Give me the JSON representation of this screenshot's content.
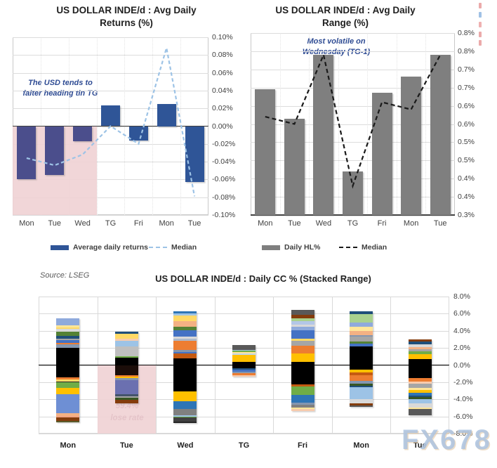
{
  "page": {
    "watermark": "FX678",
    "source_note": "Source: LSEG",
    "edge_marks": [
      {
        "y": 4,
        "color": "#E89B9B"
      },
      {
        "y": 17,
        "color": "#8FB6E0"
      },
      {
        "y": 31,
        "color": "#ECA3A3"
      },
      {
        "y": 45,
        "color": "#E89B9B"
      },
      {
        "y": 57,
        "color": "#E89B9B"
      }
    ]
  },
  "chart_data": [
    {
      "id": "returns",
      "type": "bar",
      "title": "US DOLLAR INDE/d : Avg Daily Returns (%)",
      "title_lines": [
        "US DOLLAR INDE/d : Avg Daily",
        "Returns (%)"
      ],
      "categories": [
        "Mon",
        "Tue",
        "Wed",
        "TG",
        "Fri",
        "Mon",
        "Tue"
      ],
      "series": [
        {
          "name": "Average daily returns",
          "type": "bar",
          "color": "#2F5597",
          "values": [
            -0.06,
            -0.055,
            -0.017,
            0.023,
            -0.016,
            0.025,
            -0.063
          ]
        },
        {
          "name": "Median",
          "type": "line",
          "style": "dashed",
          "color": "#9DC3E6",
          "values": [
            -0.036,
            -0.044,
            -0.032,
            0.0,
            -0.02,
            0.088,
            -0.079
          ]
        }
      ],
      "ylim": [
        -0.1,
        0.1
      ],
      "ylabel": "",
      "xlabel": "",
      "grid": true,
      "legend_position": "bottom",
      "yticks": [
        {
          "v": 0.1,
          "label": "0.10%"
        },
        {
          "v": 0.08,
          "label": "0.08%"
        },
        {
          "v": 0.06,
          "label": "0.06%"
        },
        {
          "v": 0.04,
          "label": "0.04%"
        },
        {
          "v": 0.02,
          "label": "0.02%"
        },
        {
          "v": 0.0,
          "label": "0.00%"
        },
        {
          "v": -0.02,
          "label": "-0.02%"
        },
        {
          "v": -0.04,
          "label": "-0.04%"
        },
        {
          "v": -0.06,
          "label": "-0.06%"
        },
        {
          "v": -0.08,
          "label": "-0.08%"
        },
        {
          "v": -0.1,
          "label": "-0.10%"
        }
      ],
      "annotation": {
        "lines": [
          "The USD tends to",
          "falter heading tin TG"
        ],
        "color": "#2E4B93"
      },
      "highlight": {
        "categories": [
          0,
          2
        ],
        "from": 0,
        "to": -0.1,
        "color": "rgba(240,209,212,0.9)",
        "bar_color": "#4B4E8C"
      }
    },
    {
      "id": "range",
      "type": "bar",
      "title": "US DOLLAR INDE/d : Avg Daily Range (%)",
      "title_lines": [
        "US DOLLAR INDE/d : Avg Daily",
        "Range (%)"
      ],
      "categories": [
        "Mon",
        "Tue",
        "Wed",
        "TG",
        "Fri",
        "Mon",
        "Tue"
      ],
      "series": [
        {
          "name": "Daily HL%",
          "type": "bar",
          "color": "#7F7F7F",
          "values": [
            0.645,
            0.565,
            0.74,
            0.42,
            0.635,
            0.68,
            0.74
          ]
        },
        {
          "name": "Median",
          "type": "line",
          "style": "dashed",
          "color": "#1A1A1A",
          "values": [
            0.57,
            0.55,
            0.74,
            0.38,
            0.61,
            0.59,
            0.74
          ]
        }
      ],
      "ylim": [
        0.3,
        0.8
      ],
      "ylabel": "",
      "xlabel": "",
      "grid": true,
      "legend_position": "bottom",
      "yticks": [
        {
          "v": 0.8,
          "label": "0.8%"
        },
        {
          "v": 0.75,
          "label": "0.8%"
        },
        {
          "v": 0.7,
          "label": "0.7%"
        },
        {
          "v": 0.65,
          "label": "0.7%"
        },
        {
          "v": 0.6,
          "label": "0.6%"
        },
        {
          "v": 0.55,
          "label": "0.6%"
        },
        {
          "v": 0.5,
          "label": "0.5%"
        },
        {
          "v": 0.45,
          "label": "0.5%"
        },
        {
          "v": 0.4,
          "label": "0.4%"
        },
        {
          "v": 0.35,
          "label": "0.4%"
        },
        {
          "v": 0.3,
          "label": "0.3%"
        }
      ],
      "annotation": {
        "lines": [
          "Most volatile on",
          "Wednesday (TG-1)"
        ],
        "color": "#2E4B93"
      }
    },
    {
      "id": "stacked",
      "type": "stacked-bar",
      "title": "US DOLLAR INDE/d : Daily CC % (Stacked Range)",
      "categories": [
        "Mon",
        "Tue",
        "Wed",
        "TG",
        "Fri",
        "Mon",
        "Tue"
      ],
      "ylim": [
        -8,
        8
      ],
      "grid": true,
      "yticks": [
        {
          "v": 8,
          "label": "8.0%"
        },
        {
          "v": 6,
          "label": "6.0%"
        },
        {
          "v": 4,
          "label": "4.0%"
        },
        {
          "v": 2,
          "label": "2.0%"
        },
        {
          "v": 0,
          "label": "0.0%"
        },
        {
          "v": -2,
          "label": "-2.0%"
        },
        {
          "v": -4,
          "label": "-4.0%"
        },
        {
          "v": -6,
          "label": "-6.0%"
        },
        {
          "v": -8,
          "label": "-8.0%"
        }
      ],
      "annotation": {
        "lines": [
          "59.4%",
          "lose rate"
        ],
        "color": "#7A3E62"
      },
      "highlight": {
        "category": 1,
        "from": 0,
        "to": -8,
        "color": "rgba(240,209,212,0.9)"
      },
      "bars": [
        {
          "category": "Mon",
          "top": 5.45,
          "segments": [
            [
              "#8FAADC",
              0.85
            ],
            [
              "#FFE699",
              0.18
            ],
            [
              "#FFD966",
              0.22
            ],
            [
              "#D9D9D9",
              0.32
            ],
            [
              "#548235",
              0.5
            ],
            [
              "#1F4E79",
              0.28
            ],
            [
              "#A6A6A6",
              0.2
            ],
            [
              "#4472C4",
              0.28
            ],
            [
              "#ED7D31",
              0.22
            ],
            [
              "#8496B0",
              0.4
            ],
            [
              "#000000",
              3.4
            ],
            [
              "#ED7D31",
              0.28
            ],
            [
              "#FFD966",
              0.22
            ],
            [
              "#262626",
              0.15
            ],
            [
              "#70AD47",
              0.6
            ],
            [
              "#FFC000",
              0.75
            ],
            [
              "#6E8FD4",
              2.25
            ],
            [
              "#F4B183",
              0.28
            ],
            [
              "#F2A584",
              0.22
            ],
            [
              "#843C0C",
              0.38
            ],
            [
              "#5A5A2A",
              0.15
            ]
          ]
        },
        {
          "category": "Tue",
          "top": 3.9,
          "segments": [
            [
              "#1F4E79",
              0.22
            ],
            [
              "#FFD966",
              0.6
            ],
            [
              "#F8CBAD",
              0.26
            ],
            [
              "#9DC3E6",
              0.64
            ],
            [
              "#BFBFBF",
              1.13
            ],
            [
              "#70AD47",
              0.2
            ],
            [
              "#000000",
              0.9
            ],
            [
              "#1B0D09",
              1.1
            ],
            [
              "#ED7D31",
              0.2
            ],
            [
              "#FFC000",
              0.2
            ],
            [
              "#8497B0",
              0.25
            ],
            [
              "#6B70B0",
              1.6
            ],
            [
              "#44546A",
              0.25
            ],
            [
              "#A6A6A6",
              0.2
            ],
            [
              "#375623",
              0.2
            ],
            [
              "#843C0C",
              0.4
            ]
          ]
        },
        {
          "category": "Wed",
          "top": 6.25,
          "segments": [
            [
              "#2E75B6",
              0.25
            ],
            [
              "#9DC3E6",
              0.2
            ],
            [
              "#FFD966",
              0.65
            ],
            [
              "#F4B183",
              0.65
            ],
            [
              "#548235",
              0.45
            ],
            [
              "#4472C4",
              0.75
            ],
            [
              "#D9D9D9",
              0.2
            ],
            [
              "#ADB9CA",
              0.25
            ],
            [
              "#ED7D31",
              1.05
            ],
            [
              "#8496B0",
              0.25
            ],
            [
              "#4472C4",
              0.2
            ],
            [
              "#C55A11",
              0.6
            ],
            [
              "#000000",
              3.8
            ],
            [
              "#FFC000",
              1.2
            ],
            [
              "#2E75B6",
              0.9
            ],
            [
              "#808080",
              0.7
            ],
            [
              "#9DC3E6",
              0.15
            ],
            [
              "#70AD47",
              0.12
            ],
            [
              "#404040",
              0.48
            ],
            [
              "#262626",
              0.15
            ]
          ]
        },
        {
          "category": "TG",
          "top": 2.3,
          "segments": [
            [
              "#595959",
              0.5
            ],
            [
              "#9DC3E6",
              0.15
            ],
            [
              "#70AD47",
              0.15
            ],
            [
              "#FFE699",
              0.18
            ],
            [
              "#BDD7EE",
              0.15
            ],
            [
              "#FFC000",
              0.82
            ],
            [
              "#000000",
              0.7
            ],
            [
              "#1F4E79",
              0.18
            ],
            [
              "#4472C4",
              0.28
            ],
            [
              "#8496B0",
              0.16
            ],
            [
              "#ED7D31",
              0.18
            ],
            [
              "#F8CBAD",
              0.2
            ]
          ]
        },
        {
          "category": "Fri",
          "top": 6.45,
          "segments": [
            [
              "#595959",
              0.55
            ],
            [
              "#843C0C",
              0.45
            ],
            [
              "#A9D18E",
              0.35
            ],
            [
              "#B4C7E7",
              0.38
            ],
            [
              "#D9D9D9",
              0.25
            ],
            [
              "#8FAADC",
              0.42
            ],
            [
              "#4472C4",
              1.0
            ],
            [
              "#FFD966",
              0.2
            ],
            [
              "#A6A6A6",
              0.6
            ],
            [
              "#ED7D31",
              0.9
            ],
            [
              "#FFC000",
              1.0
            ],
            [
              "#000000",
              2.6
            ],
            [
              "#C55A11",
              0.25
            ],
            [
              "#70AD47",
              0.95
            ],
            [
              "#2E75B6",
              0.9
            ],
            [
              "#8496B0",
              0.3
            ],
            [
              "#808080",
              0.35
            ],
            [
              "#FFE699",
              0.15
            ],
            [
              "#F8CBAD",
              0.2
            ]
          ]
        },
        {
          "category": "Mon",
          "top": 6.3,
          "segments": [
            [
              "#1F4E79",
              0.35
            ],
            [
              "#A9D18E",
              1.0
            ],
            [
              "#8FAADC",
              0.45
            ],
            [
              "#FFE699",
              0.55
            ],
            [
              "#F4B183",
              0.45
            ],
            [
              "#8496B0",
              0.15
            ],
            [
              "#A6A6A6",
              0.6
            ],
            [
              "#548235",
              0.25
            ],
            [
              "#4472C4",
              0.35
            ],
            [
              "#000000",
              2.65
            ],
            [
              "#FFC000",
              0.4
            ],
            [
              "#C55A11",
              0.25
            ],
            [
              "#ED7D31",
              0.7
            ],
            [
              "#8496B0",
              0.35
            ],
            [
              "#375623",
              0.2
            ],
            [
              "#1F4E79",
              0.2
            ],
            [
              "#9DC3E6",
              1.4
            ],
            [
              "#D9D9D9",
              0.5
            ],
            [
              "#843C0C",
              0.2
            ],
            [
              "#595959",
              0.2
            ]
          ]
        },
        {
          "category": "Tue",
          "top": 3.0,
          "segments": [
            [
              "#843C0C",
              0.25
            ],
            [
              "#1F4E79",
              0.35
            ],
            [
              "#D9D9D9",
              0.3
            ],
            [
              "#F4B183",
              0.25
            ],
            [
              "#A6A6A6",
              0.25
            ],
            [
              "#70AD47",
              0.3
            ],
            [
              "#FFC000",
              0.6
            ],
            [
              "#000000",
              2.25
            ],
            [
              "#ED7D31",
              0.35
            ],
            [
              "#F8CBAD",
              0.3
            ],
            [
              "#A6A6A6",
              0.45
            ],
            [
              "#FFE699",
              0.25
            ],
            [
              "#FFC000",
              0.3
            ],
            [
              "#2E75B6",
              0.35
            ],
            [
              "#1F4E79",
              0.2
            ],
            [
              "#375623",
              0.2
            ],
            [
              "#9DC3E6",
              0.55
            ],
            [
              "#D9D9D9",
              0.5
            ],
            [
              "#FFE699",
              0.15
            ],
            [
              "#595959",
              0.75
            ]
          ]
        }
      ]
    }
  ]
}
